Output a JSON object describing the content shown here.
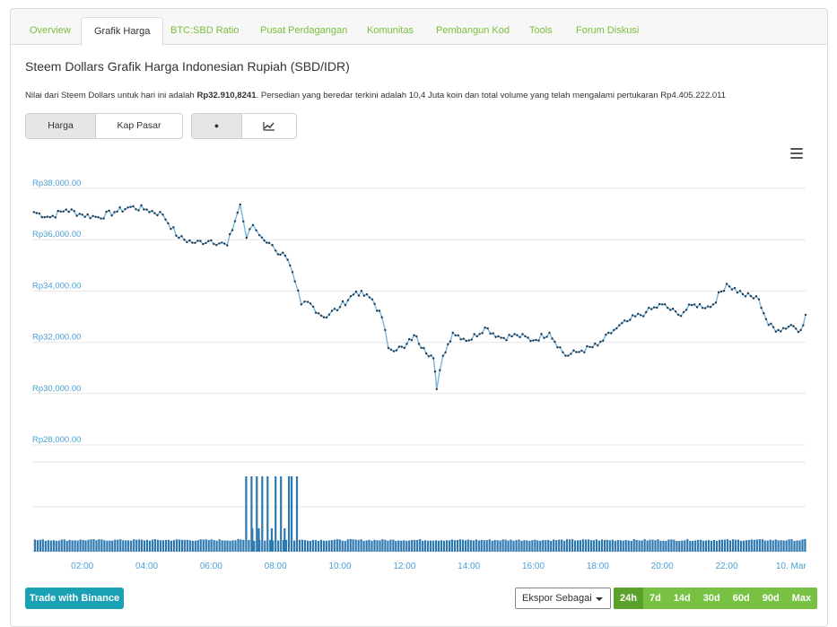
{
  "tabs": [
    {
      "label": "Overview",
      "active": false
    },
    {
      "label": "Grafik Harga",
      "active": true
    },
    {
      "label": "BTC:SBD Ratio",
      "active": false
    },
    {
      "label": "Pusat Perdagangan",
      "active": false
    },
    {
      "label": "Komunitas",
      "active": false
    },
    {
      "label": "Pembangun Kod",
      "active": false
    },
    {
      "label": "Tools",
      "active": false
    },
    {
      "label": "Forum Diskusi",
      "active": false
    }
  ],
  "header": {
    "title": "Steem Dollars Grafik Harga Indonesian Rupiah (SBD/IDR)",
    "desc_1": "Nilai dari Steem Dollars untuk hari ini adalah ",
    "price": "Rp32.910,8241",
    "desc_2": ". Persedian yang beredar terkini adalah 10,4 Juta koin dan total volume yang telah mengalami pertukaran Rp4.405.222.011"
  },
  "toggles": {
    "harga": "Harga",
    "kap_pasar": "Kap Pasar",
    "dot_glyph": "●"
  },
  "icons": {
    "menu": "hamburger-menu-icon",
    "line_chart": "line-chart-icon"
  },
  "colors": {
    "line": "#7ab6d9",
    "point": "#1b3a55",
    "volume": "#2e78b0",
    "axis_label": "#4aa0d5",
    "accent_green": "#78c142",
    "button_teal": "#1aa2b4"
  },
  "footer": {
    "trade_button": "Trade with Binance",
    "export_label": "Ekspor Sebagai",
    "ranges": [
      {
        "label": "24h",
        "active": true
      },
      {
        "label": "7d",
        "active": false
      },
      {
        "label": "14d",
        "active": false
      },
      {
        "label": "30d",
        "active": false
      },
      {
        "label": "60d",
        "active": false
      },
      {
        "label": "90d",
        "active": false
      },
      {
        "label": "Max",
        "active": false
      }
    ]
  },
  "chart_data": {
    "type": "line",
    "title": "",
    "xlabel": "",
    "ylabel": "",
    "ylim": [
      28000,
      38000
    ],
    "y_ticks": [
      {
        "value": 38000,
        "label": "Rp38,000.00"
      },
      {
        "value": 36000,
        "label": "Rp36,000.00"
      },
      {
        "value": 34000,
        "label": "Rp34,000.00"
      },
      {
        "value": 32000,
        "label": "Rp32,000.00"
      },
      {
        "value": 30000,
        "label": "Rp30,000.00"
      },
      {
        "value": 28000,
        "label": "Rp28,000.00"
      }
    ],
    "x_range_hours": [
      0.45,
      24.45
    ],
    "x_ticks": [
      {
        "value": 2,
        "label": "02:00"
      },
      {
        "value": 4,
        "label": "04:00"
      },
      {
        "value": 6,
        "label": "06:00"
      },
      {
        "value": 8,
        "label": "08:00"
      },
      {
        "value": 10,
        "label": "10:00"
      },
      {
        "value": 12,
        "label": "12:00"
      },
      {
        "value": 14,
        "label": "14:00"
      },
      {
        "value": 16,
        "label": "16:00"
      },
      {
        "value": 18,
        "label": "18:00"
      },
      {
        "value": 20,
        "label": "20:00"
      },
      {
        "value": 22,
        "label": "22:00"
      },
      {
        "value": 24,
        "label": "10. Mar"
      }
    ],
    "series": [
      {
        "x": [
          0.5,
          1.0,
          1.5,
          2.0,
          2.5,
          3.0,
          3.5,
          4.0,
          4.5,
          5.0,
          5.5,
          6.0,
          6.5,
          6.9,
          7.1,
          7.3,
          7.5,
          7.8,
          8.0,
          8.3,
          8.6,
          8.8,
          9.0,
          9.5,
          10.0,
          10.5,
          11.0,
          11.3,
          11.5,
          12.0,
          12.3,
          12.6,
          12.9,
          13.0,
          13.2,
          13.5,
          14.0,
          14.5,
          15.0,
          15.5,
          16.0,
          16.5,
          17.0,
          17.5,
          18.0,
          18.5,
          19.0,
          19.5,
          20.0,
          20.5,
          21.0,
          21.5,
          22.0,
          22.5,
          23.0,
          23.3,
          23.6,
          24.0,
          24.3,
          24.45
        ],
        "y": [
          36900,
          36700,
          37000,
          36800,
          36700,
          36900,
          37100,
          37000,
          36800,
          35900,
          35700,
          35800,
          35600,
          37200,
          35900,
          36400,
          36000,
          35700,
          35400,
          35200,
          34200,
          33300,
          33400,
          32800,
          33200,
          33800,
          33500,
          32800,
          31600,
          31600,
          32100,
          31600,
          31200,
          30000,
          31300,
          32200,
          31900,
          32400,
          32000,
          32100,
          31900,
          32200,
          31300,
          31500,
          31700,
          32300,
          32700,
          33000,
          33300,
          32900,
          33300,
          33200,
          34100,
          33700,
          33500,
          32500,
          32300,
          32500,
          32300,
          32900
        ]
      }
    ],
    "volume": {
      "spikes": [
        {
          "x": 7.05,
          "level": "high"
        },
        {
          "x": 7.2,
          "level": "high"
        },
        {
          "x": 7.35,
          "level": "high"
        },
        {
          "x": 7.55,
          "level": "high"
        },
        {
          "x": 7.7,
          "level": "high"
        },
        {
          "x": 7.95,
          "level": "high"
        },
        {
          "x": 8.15,
          "level": "high"
        },
        {
          "x": 8.35,
          "level": "high"
        },
        {
          "x": 8.5,
          "level": "high"
        },
        {
          "x": 8.65,
          "level": "high"
        }
      ]
    }
  }
}
